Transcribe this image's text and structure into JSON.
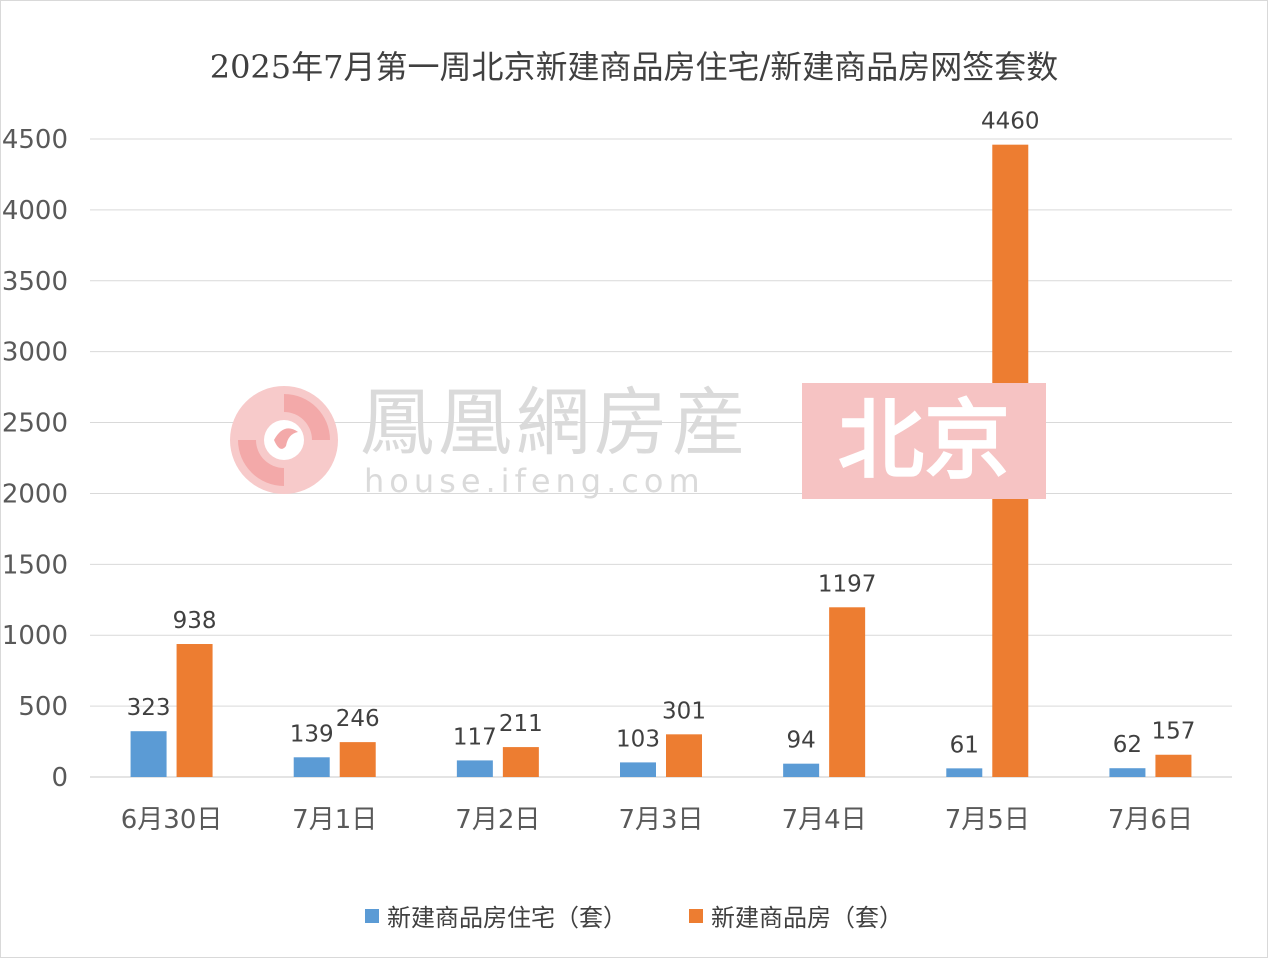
{
  "chart_data": {
    "type": "bar",
    "title": "2025年7月第一周北京新建商品房住宅/新建商品房网签套数",
    "categories": [
      "6月30日",
      "7月1日",
      "7月2日",
      "7月3日",
      "7月4日",
      "7月5日",
      "7月6日"
    ],
    "series": [
      {
        "name": "新建商品房住宅（套）",
        "color": "#5b9bd5",
        "values": [
          323,
          139,
          117,
          103,
          94,
          61,
          62
        ]
      },
      {
        "name": "新建商品房（套）",
        "color": "#ed7d31",
        "values": [
          938,
          246,
          211,
          301,
          1197,
          4460,
          157
        ]
      }
    ],
    "ylim": [
      0,
      4500
    ],
    "yticks": [
      0,
      500,
      1000,
      1500,
      2000,
      2500,
      3000,
      3500,
      4000,
      4500
    ],
    "grid": true,
    "legend_position": "bottom"
  },
  "watermark": {
    "name": "鳳凰網房産",
    "url": "house.ifeng.com",
    "city": "北京",
    "logo_icon": "phoenix-logo-icon"
  }
}
